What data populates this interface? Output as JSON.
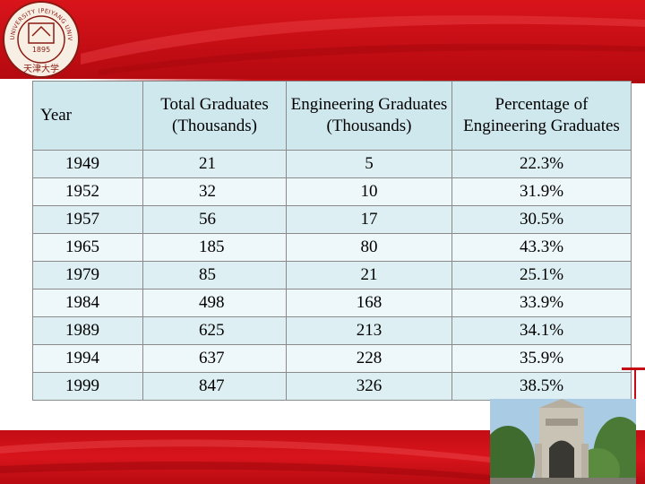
{
  "table": {
    "headers": [
      "Year",
      "Total Graduates (Thousands)",
      "Engineering Graduates (Thousands)",
      "Percentage of Engineering Graduates"
    ],
    "rows": [
      [
        "1949",
        "21",
        "5",
        "22.3%"
      ],
      [
        "1952",
        "32",
        "10",
        "31.9%"
      ],
      [
        "1957",
        "56",
        "17",
        "30.5%"
      ],
      [
        "1965",
        "185",
        "80",
        "43.3%"
      ],
      [
        "1979",
        "85",
        "21",
        "25.1%"
      ],
      [
        "1984",
        "498",
        "168",
        "33.9%"
      ],
      [
        "1989",
        "625",
        "213",
        "34.1%"
      ],
      [
        "1994",
        "637",
        "228",
        "35.9%"
      ],
      [
        "1999",
        "847",
        "326",
        "38.5%"
      ]
    ]
  },
  "logo": {
    "top_text": "TIANJIN UNIVERSITY (PEIYANG UNIVERSITY)",
    "center_text": "1895",
    "bottom_text": "天津大学"
  },
  "colors": {
    "brand_red": "#c40d14",
    "header_fill": "#cfe8ee",
    "row_fill": "#ddeff3"
  },
  "icons": {
    "logo": "university-seal-icon",
    "photo": "campus-building-photo"
  }
}
